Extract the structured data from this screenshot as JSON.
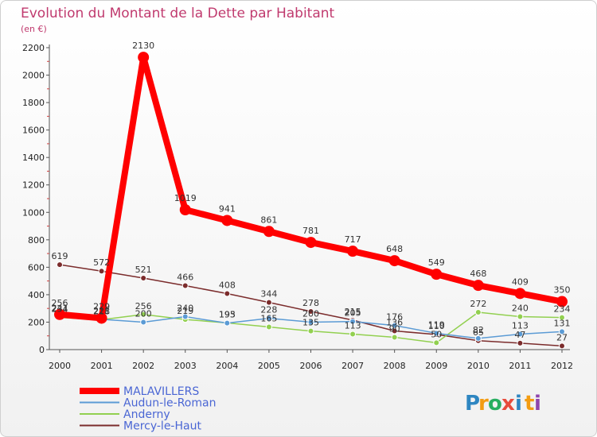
{
  "chart_data": {
    "type": "line",
    "title": "Evolution du Montant de la Dette par Habitant",
    "subtitle": "(en €)",
    "xlabel": "",
    "ylabel": "",
    "ylim": [
      0,
      2200
    ],
    "yticks": [
      "0",
      "200",
      "400",
      "600",
      "800",
      "1000",
      "1200",
      "1400",
      "1600",
      "1800",
      "2000",
      "2200"
    ],
    "x": [
      "2000",
      "2001",
      "2002",
      "2003",
      "2004",
      "2005",
      "2006",
      "2007",
      "2008",
      "2009",
      "2010",
      "2011",
      "2012"
    ],
    "grid": false,
    "legend_position": "bottom-left",
    "series": [
      {
        "name": "MALAVILLERS",
        "color": "#ff0000",
        "values": [
          256,
          229,
          2130,
          1019,
          941,
          861,
          781,
          717,
          648,
          549,
          468,
          409,
          350
        ],
        "labels": [
          "256",
          "229",
          "2130",
          "1019",
          "941",
          "861",
          "781",
          "717",
          "648",
          "549",
          "468",
          "409",
          "350"
        ]
      },
      {
        "name": "Audun-le-Roman",
        "color": "#5b9bd5",
        "values": [
          241,
          221,
          200,
          240,
          193,
          228,
          200,
          205,
          176,
          119,
          82,
          113,
          131
        ],
        "labels": [
          "241",
          "221",
          "200",
          "240",
          "193",
          "228",
          "200",
          "205",
          "176",
          "119",
          "82",
          "113",
          "131"
        ]
      },
      {
        "name": "Anderny",
        "color": "#92d050",
        "values": [
          234,
          218,
          256,
          219,
          195,
          165,
          135,
          113,
          90,
          50,
          272,
          240,
          234
        ],
        "labels": [
          "234",
          "218",
          "256",
          "219",
          "195",
          "165",
          "135",
          "113",
          "90",
          "50",
          "272",
          "240",
          "234"
        ]
      },
      {
        "name": "Mercy-le-Haut",
        "color": "#7b2c2c",
        "values": [
          619,
          572,
          521,
          466,
          408,
          344,
          278,
          215,
          136,
          110,
          65,
          47,
          27
        ],
        "labels": [
          "619",
          "572",
          "521",
          "466",
          "408",
          "344",
          "278",
          "215",
          "136",
          "110",
          "65",
          "47",
          "27"
        ]
      }
    ]
  },
  "logo": {
    "letters": [
      "P",
      "r",
      "o",
      "x",
      "i",
      "t",
      "i"
    ],
    "colors": [
      "#2e86c1",
      "#f39c12",
      "#27ae60",
      "#e74c3c",
      "#2e86c1",
      "#f39c12",
      "#8e44ad"
    ]
  }
}
